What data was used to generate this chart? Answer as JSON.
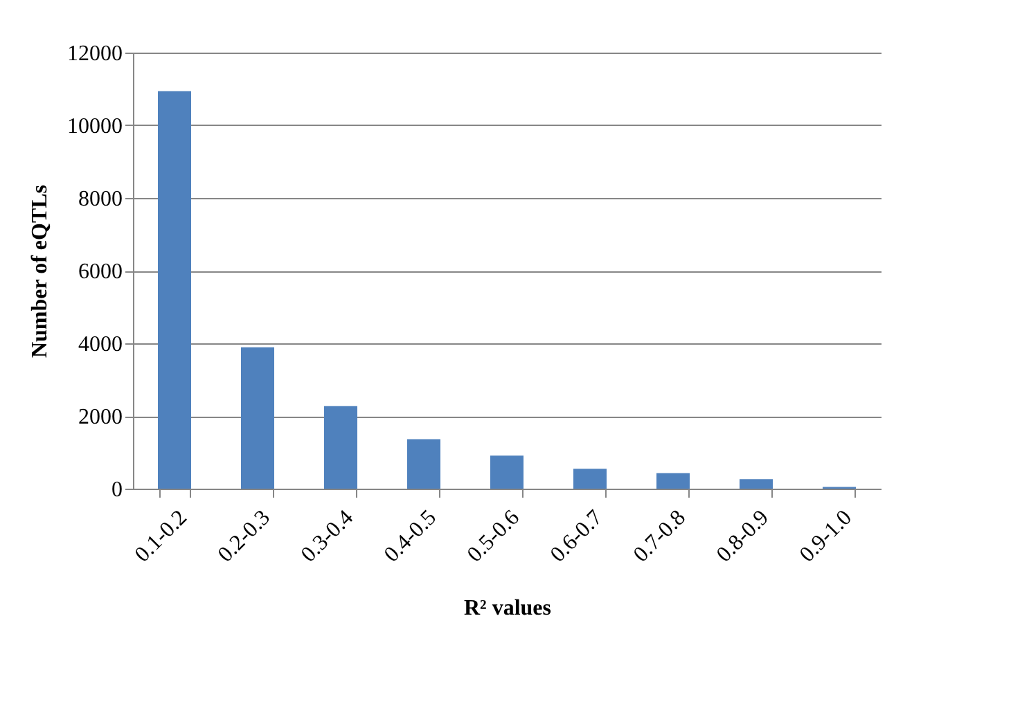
{
  "chart_data": {
    "type": "bar",
    "xlabel": "R² values",
    "ylabel": "Number of eQTLs",
    "categories": [
      "0.1-0.2",
      "0.2-0.3",
      "0.3-0.4",
      "0.4-0.5",
      "0.5-0.6",
      "0.6-0.7",
      "0.7-0.8",
      "0.8-0.9",
      "0.9-1.0"
    ],
    "values": [
      10940,
      3890,
      2270,
      1360,
      910,
      550,
      430,
      260,
      50
    ],
    "color": "#4f81bd",
    "ylim": [
      0,
      12000
    ],
    "yticks": [
      0,
      2000,
      4000,
      6000,
      8000,
      10000,
      12000
    ],
    "grid": "y"
  }
}
